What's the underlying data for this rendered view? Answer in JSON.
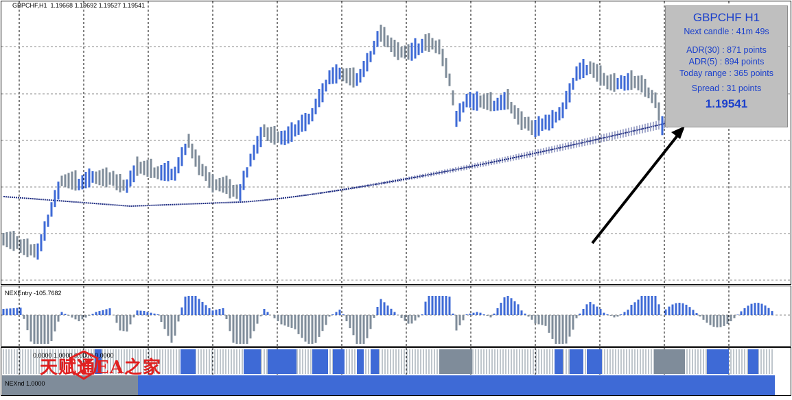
{
  "header": {
    "symbol_label": "GBPCHF,H1",
    "ohlc": "1.19668 1.19692 1.19527 1.19541"
  },
  "info_panel": {
    "title": "GBPCHF H1",
    "next_candle": "Next candle : 41m 49s",
    "adr30": "ADR(30) : 871 points",
    "adr5": "ADR(5) : 894 points",
    "today_range": "Today range : 365 points",
    "spread": "Spread : 31 points",
    "price": "1.19541"
  },
  "indicators": {
    "nexentry_label": "NEXEntry -105.7682",
    "trend_label_prefix": "0.0000 1.0000 0.0000 0.0000",
    "trend_label_bottom": "NEX",
    "trend_label_bottom_suffix": "nd  1.0000"
  },
  "watermark": {
    "text": "天赋通EA之家"
  },
  "colors": {
    "bull": "#3e6ad6",
    "bear": "#7f8c9a",
    "ma": "#1c2a80",
    "grid": "#000000",
    "panel_bg": "#bfbfbf",
    "panel_text": "#1a3fcc",
    "watermark": "#e02020"
  }
}
